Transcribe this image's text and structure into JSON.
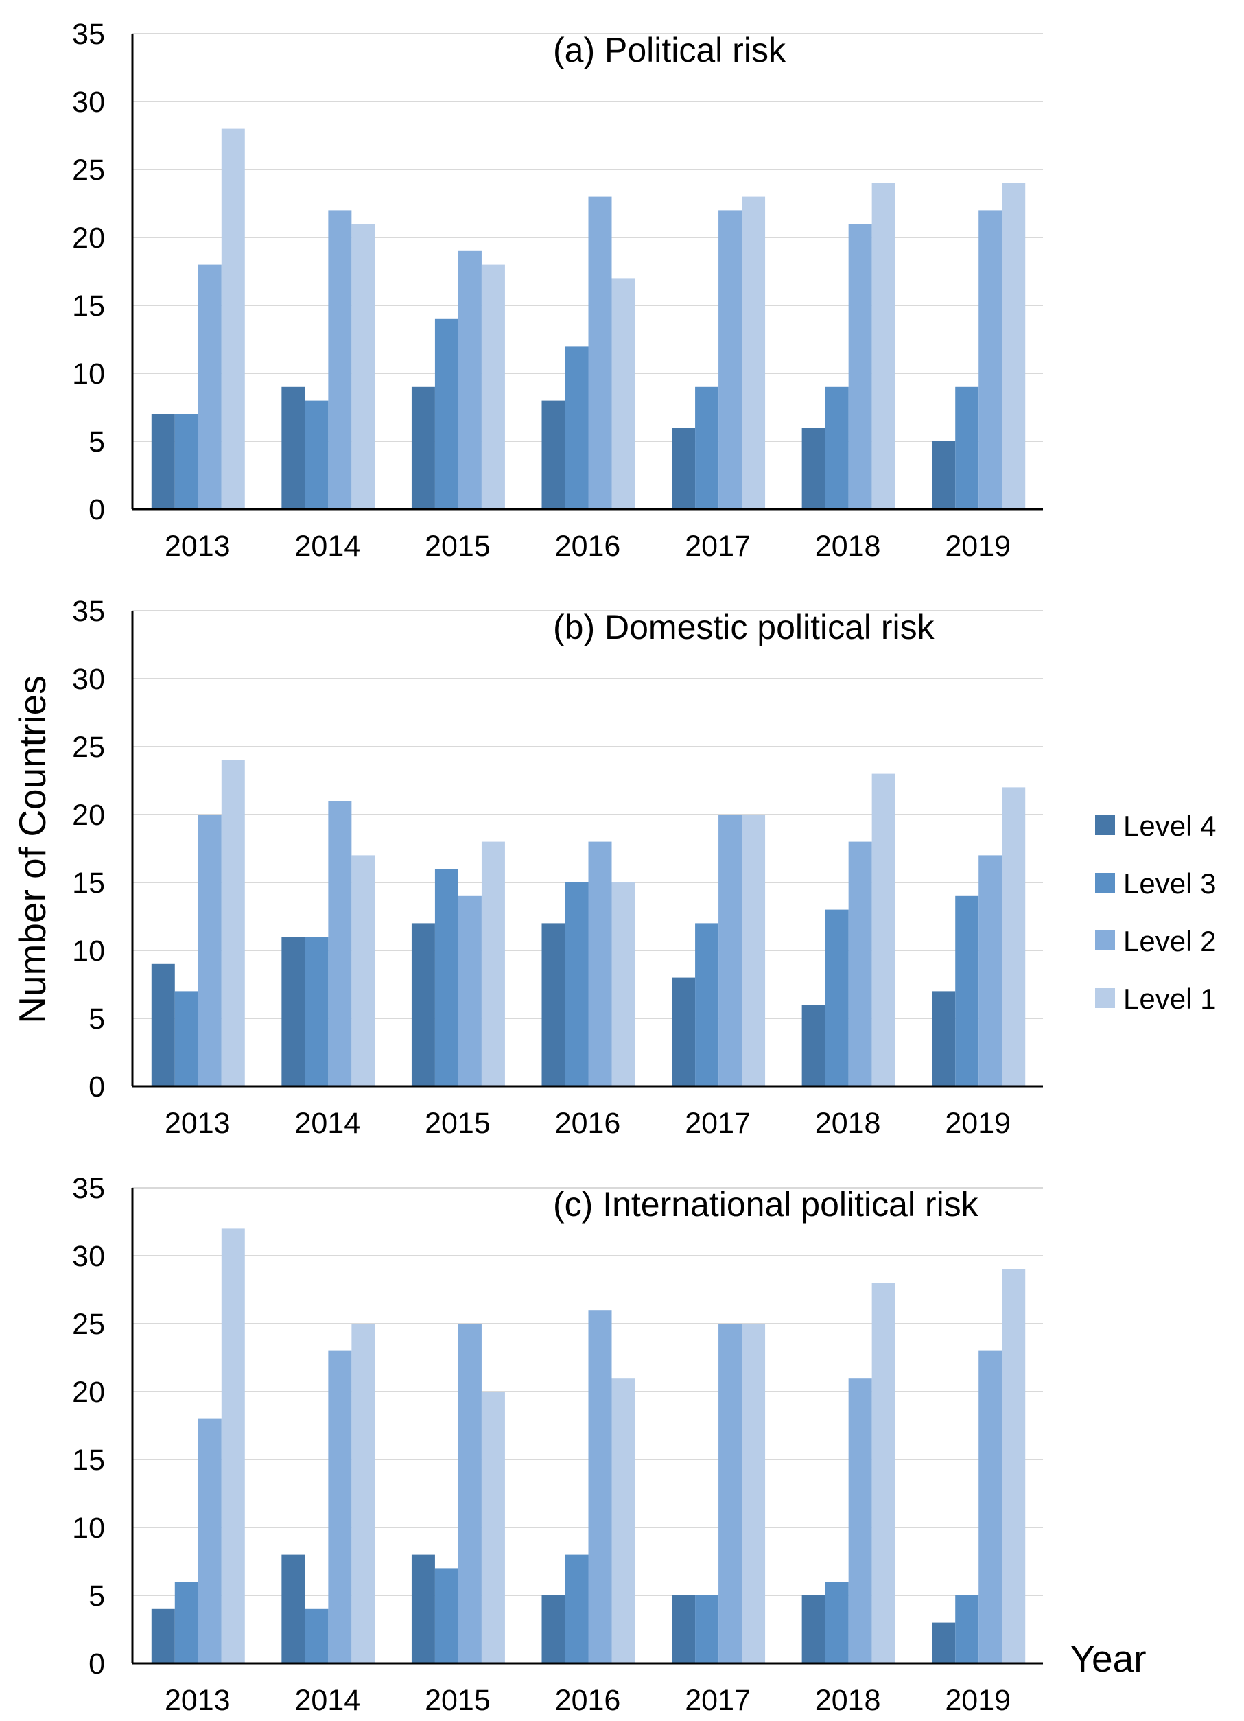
{
  "chart_data": {
    "type": "bar",
    "ylabel": "Number of Countries",
    "xlabel": "Year",
    "legend": {
      "position": "right",
      "entries": [
        "Level 4",
        "Level 3",
        "Level 2",
        "Level 1"
      ]
    },
    "colors": {
      "Level 4": "#4677a8",
      "Level 3": "#5a90c6",
      "Level 2": "#86addb",
      "Level 1": "#b8cde8"
    },
    "panels": [
      {
        "title": "(a) Political risk",
        "categories": [
          "2013",
          "2014",
          "2015",
          "2016",
          "2017",
          "2018",
          "2019"
        ],
        "ylim": [
          0,
          35
        ],
        "yticks": [
          "0",
          "5",
          "10",
          "15",
          "20",
          "25",
          "30",
          "35"
        ],
        "grid": true,
        "series": [
          {
            "name": "Level 4",
            "values": [
              7,
              9,
              9,
              8,
              6,
              6,
              5
            ]
          },
          {
            "name": "Level 3",
            "values": [
              7,
              8,
              14,
              12,
              9,
              9,
              9
            ]
          },
          {
            "name": "Level 2",
            "values": [
              18,
              22,
              19,
              23,
              22,
              21,
              22
            ]
          },
          {
            "name": "Level 1",
            "values": [
              28,
              21,
              18,
              17,
              23,
              24,
              24
            ]
          }
        ]
      },
      {
        "title": "(b) Domestic political risk",
        "categories": [
          "2013",
          "2014",
          "2015",
          "2016",
          "2017",
          "2018",
          "2019"
        ],
        "ylim": [
          0,
          35
        ],
        "yticks": [
          "0",
          "5",
          "10",
          "15",
          "20",
          "25",
          "30",
          "35"
        ],
        "grid": true,
        "series": [
          {
            "name": "Level 4",
            "values": [
              9,
              11,
              12,
              12,
              8,
              6,
              7
            ]
          },
          {
            "name": "Level 3",
            "values": [
              7,
              11,
              16,
              15,
              12,
              13,
              14
            ]
          },
          {
            "name": "Level 2",
            "values": [
              20,
              21,
              14,
              18,
              20,
              18,
              17
            ]
          },
          {
            "name": "Level 1",
            "values": [
              24,
              17,
              18,
              15,
              20,
              23,
              22
            ]
          }
        ]
      },
      {
        "title": "(c) International political risk",
        "categories": [
          "2013",
          "2014",
          "2015",
          "2016",
          "2017",
          "2018",
          "2019"
        ],
        "ylim": [
          0,
          35
        ],
        "yticks": [
          "0",
          "5",
          "10",
          "15",
          "20",
          "25",
          "30",
          "35"
        ],
        "grid": true,
        "series": [
          {
            "name": "Level 4",
            "values": [
              4,
              8,
              8,
              5,
              5,
              5,
              3
            ]
          },
          {
            "name": "Level 3",
            "values": [
              6,
              4,
              7,
              8,
              5,
              6,
              5
            ]
          },
          {
            "name": "Level 2",
            "values": [
              18,
              23,
              25,
              26,
              25,
              21,
              23
            ]
          },
          {
            "name": "Level 1",
            "values": [
              32,
              25,
              20,
              21,
              25,
              28,
              29
            ]
          }
        ]
      }
    ]
  }
}
